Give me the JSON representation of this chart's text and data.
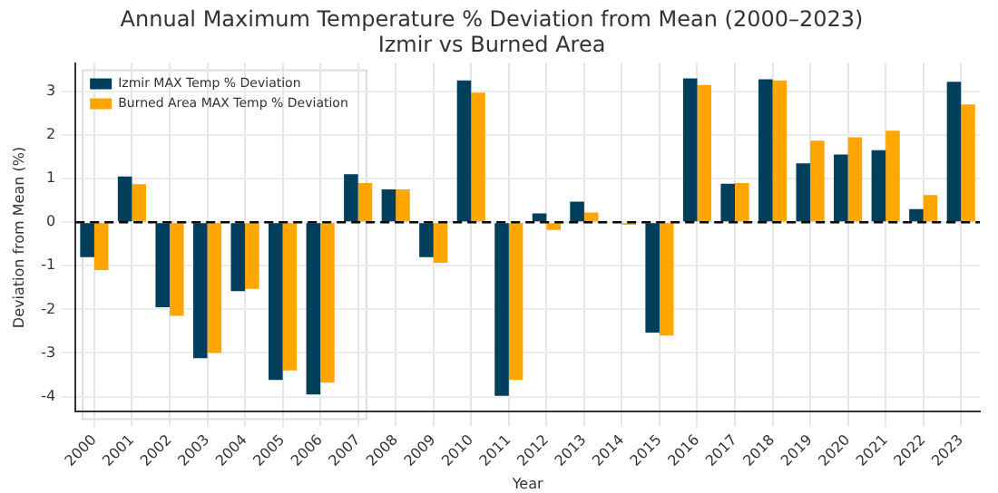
{
  "chart_data": {
    "type": "bar",
    "title": "Annual Maximum Temperature % Deviation from Mean (2000–2023)",
    "subtitle": "Izmir vs Burned Area",
    "xlabel": "Year",
    "ylabel": "Deviation from Mean (%)",
    "categories": [
      "2000",
      "2001",
      "2002",
      "2003",
      "2004",
      "2005",
      "2006",
      "2007",
      "2008",
      "2009",
      "2010",
      "2011",
      "2012",
      "2013",
      "2014",
      "2015",
      "2016",
      "2017",
      "2018",
      "2019",
      "2020",
      "2021",
      "2022",
      "2023"
    ],
    "series": [
      {
        "name": "Izmir MAX Temp % Deviation",
        "color": "#003f5c",
        "values": [
          -0.8,
          1.05,
          -1.95,
          -3.12,
          -1.58,
          -3.62,
          -3.95,
          1.1,
          0.75,
          -0.8,
          3.25,
          -3.98,
          0.2,
          0.47,
          0,
          -2.53,
          3.3,
          0.88,
          3.28,
          1.35,
          1.55,
          1.65,
          0.3,
          3.22
        ]
      },
      {
        "name": "Burned Area MAX Temp % Deviation",
        "color": "#ffa600",
        "values": [
          -1.1,
          0.87,
          -2.15,
          -3.0,
          -1.53,
          -3.4,
          -3.68,
          0.9,
          0.75,
          -0.93,
          2.97,
          -3.62,
          -0.18,
          0.22,
          -0.06,
          -2.6,
          3.15,
          0.9,
          3.25,
          1.87,
          1.95,
          2.1,
          0.62,
          2.7
        ]
      }
    ],
    "ylim": [
      -4.35,
      3.65
    ],
    "yticks": [
      -4,
      -3,
      -2,
      -1,
      0,
      1,
      2,
      3
    ],
    "grid": true,
    "legend": "top left",
    "ref_lines": [
      {
        "axis": "y",
        "value": 0,
        "color": "#000000",
        "line_style": "dashed"
      }
    ]
  }
}
